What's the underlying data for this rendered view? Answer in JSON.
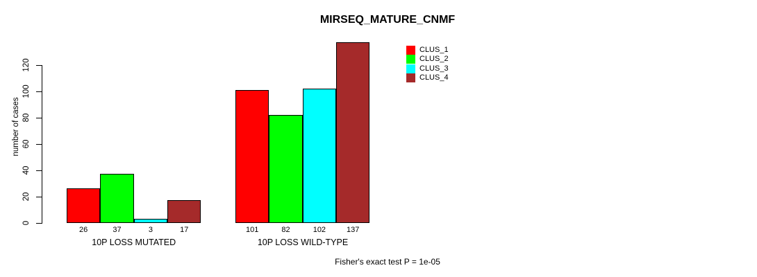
{
  "title": "MIRSEQ_MATURE_CNMF",
  "footer": "Fisher's exact test P = 1e-05",
  "y_axis": {
    "label": "number of cases"
  },
  "legend": {
    "position": "top-right",
    "items": [
      {
        "label": "CLUS_1",
        "color": "#ff0000"
      },
      {
        "label": "CLUS_2",
        "color": "#00ff00"
      },
      {
        "label": "CLUS_3",
        "color": "#00ffff"
      },
      {
        "label": "CLUS_4",
        "color": "#a52a2a"
      }
    ]
  },
  "chart_data": {
    "type": "bar",
    "title": "MIRSEQ_MATURE_CNMF",
    "ylabel": "number of cases",
    "xlabel": "",
    "ylim": [
      0,
      137
    ],
    "yticks": [
      0,
      20,
      40,
      60,
      80,
      100,
      120
    ],
    "grid": false,
    "legend_position": "top-right",
    "categories": [
      "10P LOSS MUTATED",
      "10P LOSS WILD-TYPE"
    ],
    "series": [
      {
        "name": "CLUS_1",
        "color": "#ff0000",
        "values": [
          26,
          101
        ]
      },
      {
        "name": "CLUS_2",
        "color": "#00ff00",
        "values": [
          37,
          82
        ]
      },
      {
        "name": "CLUS_3",
        "color": "#00ffff",
        "values": [
          3,
          102
        ]
      },
      {
        "name": "CLUS_4",
        "color": "#a52a2a",
        "values": [
          17,
          137
        ]
      }
    ],
    "bar_value_labels": [
      [
        26,
        37,
        3,
        17
      ],
      [
        101,
        82,
        102,
        137
      ]
    ],
    "annotation": "Fisher's exact test P = 1e-05"
  }
}
